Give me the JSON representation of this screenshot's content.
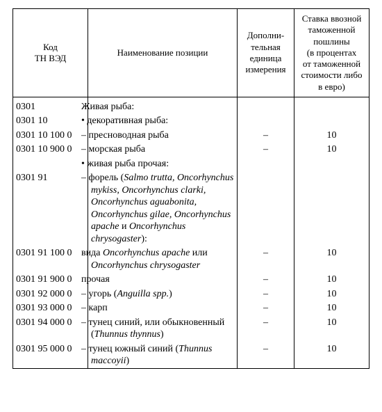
{
  "headers": {
    "code": "Код\nТН ВЭД",
    "name": "Наименование позиции",
    "unit": "Дополни-\nтельная\nединица\nизмерения",
    "rate": "Ставка ввозной\nтаможенной\nпошлины\n(в процентах\nот таможенной\nстоимости либо\nв евро)"
  },
  "rows": [
    {
      "code": "0301",
      "name_html": "Живая рыба:",
      "indent": 0,
      "unit": "",
      "rate": ""
    },
    {
      "code": "0301 10",
      "name_html": "• декоративная рыба:",
      "indent": 1,
      "unit": "",
      "rate": ""
    },
    {
      "code": "0301 10 100 0",
      "name_html": "– пресноводная рыба",
      "indent": 2,
      "unit": "–",
      "rate": "10"
    },
    {
      "code": "0301 10 900 0",
      "name_html": "– морская рыба",
      "indent": 2,
      "unit": "–",
      "rate": "10"
    },
    {
      "code": "",
      "name_html": "• живая рыба прочая:",
      "indent": 1,
      "unit": "",
      "rate": ""
    },
    {
      "code": "0301 91",
      "name_html": "– форель (<span class=\"ital\">Salmo trutta, Oncorhynchus mykiss, Oncorhynchus clarki, Oncorhynchus aguabonita, Oncorhynchus gilae, Oncorhynchus apache</span> и <span class=\"ital\">Oncorhynchus chrysogaster</span>):",
      "indent": 2,
      "unit": "",
      "rate": ""
    },
    {
      "code": "0301 91 100 0",
      "name_html": "вида <span class=\"ital\">Oncorhynchus apache</span> или <span class=\"ital\">Oncorhynchus chrysogaster</span>",
      "indent": 3,
      "unit": "–",
      "rate": "10"
    },
    {
      "code": "0301 91 900 0",
      "name_html": "прочая",
      "indent": 3,
      "unit": "–",
      "rate": "10"
    },
    {
      "code": "0301 92 000 0",
      "name_html": "– угорь (<span class=\"ital\">Anguilla spp.</span>)",
      "indent": 2,
      "unit": "–",
      "rate": "10"
    },
    {
      "code": "0301 93 000 0",
      "name_html": "– карп",
      "indent": 2,
      "unit": "–",
      "rate": "10"
    },
    {
      "code": "0301 94 000 0",
      "name_html": "– тунец синий, или обыкновенный (<span class=\"ital\">Thunnus thynnus</span>)",
      "indent": 2,
      "unit": "–",
      "rate": "10"
    },
    {
      "code": "0301 95 000 0",
      "name_html": "– тунец южный синий (<span class=\"ital\">Thunnus maccoyii</span>)",
      "indent": 2,
      "unit": "–",
      "rate": "10"
    }
  ]
}
